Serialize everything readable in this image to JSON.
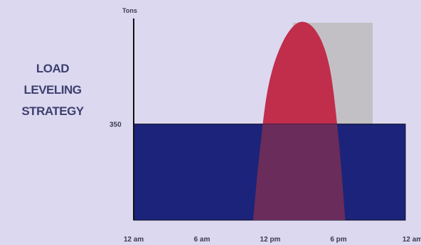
{
  "title_lines": [
    "LOAD",
    "LEVELING",
    "STRATEGY"
  ],
  "chart_data": {
    "type": "area",
    "ylabel": "Tons",
    "x_ticks": [
      "12 am",
      "6 am",
      "12 pm",
      "6 pm",
      "12 am"
    ],
    "xlim": [
      0,
      24
    ],
    "ylim": [
      0,
      750
    ],
    "level_label": "350",
    "level_value": 350,
    "peak_window_hours": [
      14,
      21
    ],
    "peak_load": [
      {
        "x": 10.5,
        "y": 0
      },
      {
        "x": 11.0,
        "y": 220
      },
      {
        "x": 11.8,
        "y": 480
      },
      {
        "x": 13.0,
        "y": 640
      },
      {
        "x": 14.5,
        "y": 720
      },
      {
        "x": 16.0,
        "y": 690
      },
      {
        "x": 17.2,
        "y": 560
      },
      {
        "x": 18.0,
        "y": 300
      },
      {
        "x": 18.6,
        "y": 0
      }
    ],
    "colors": {
      "background": "#dcd8f0",
      "peak_window": "#c3c0c5",
      "peak_curve": "#c02e4c",
      "level_band": "#1c237a",
      "overlap": "#6a2c5a",
      "axis": "#111111",
      "text": "#3a3b55"
    }
  }
}
